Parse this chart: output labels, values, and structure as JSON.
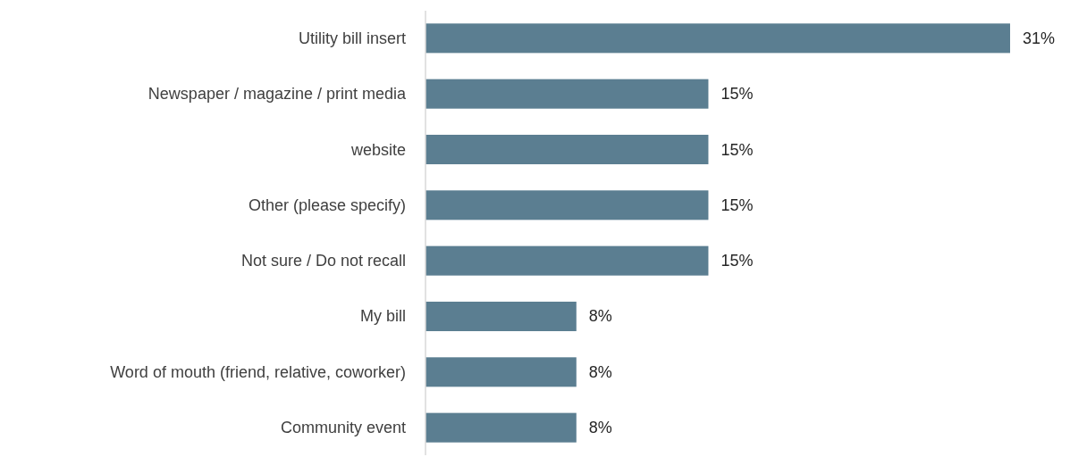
{
  "chart_data": {
    "type": "bar",
    "orientation": "horizontal",
    "categories": [
      "Utility bill insert",
      "Newspaper / magazine / print media",
      "website",
      "Other (please specify)",
      "Not sure / Do not recall",
      "My bill",
      "Word of mouth (friend, relative, coworker)",
      "Community event"
    ],
    "values": [
      31,
      15,
      15,
      15,
      15,
      8,
      8,
      8
    ],
    "value_labels": [
      "31%",
      "15%",
      "15%",
      "15%",
      "15%",
      "8%",
      "8%",
      "8%"
    ],
    "color": "#5b7e91"
  }
}
